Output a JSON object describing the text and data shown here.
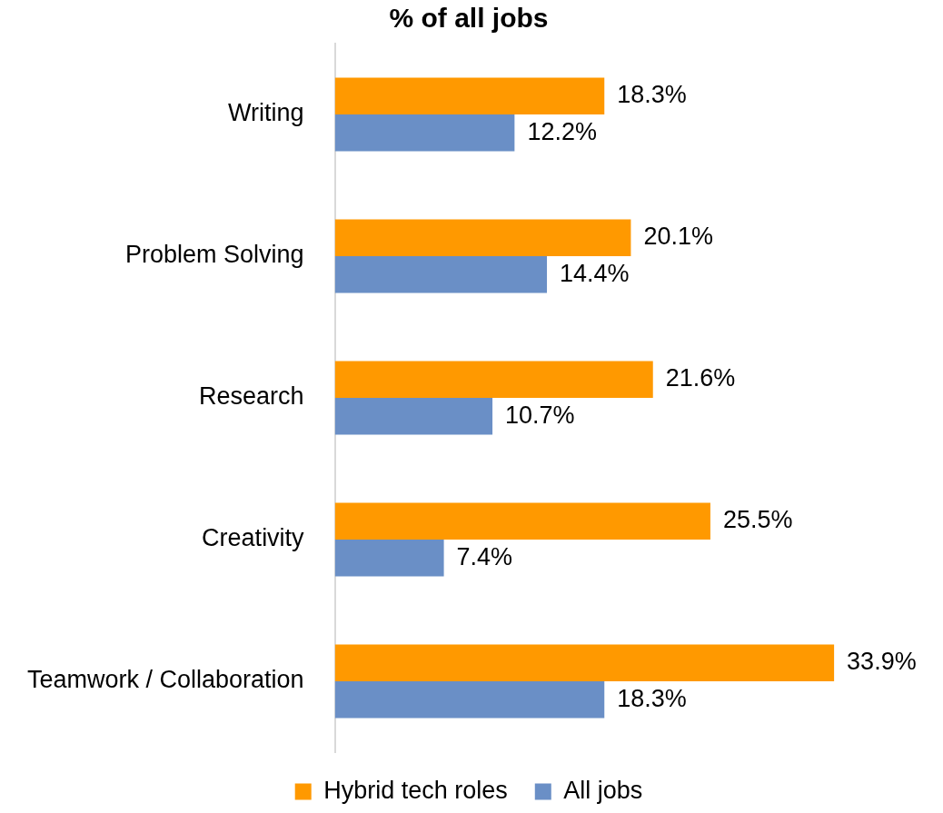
{
  "chart_data": {
    "type": "bar",
    "orientation": "horizontal",
    "title": "% of all jobs",
    "categories": [
      "Writing",
      "Problem Solving",
      "Research",
      "Creativity",
      "Teamwork / Collaboration"
    ],
    "series": [
      {
        "name": "Hybrid tech roles",
        "color": "#ff9900",
        "values": [
          18.3,
          20.1,
          21.6,
          25.5,
          33.9
        ],
        "value_labels": [
          "18.3%",
          "20.1%",
          "21.6%",
          "25.5%",
          "33.9%"
        ]
      },
      {
        "name": "All jobs",
        "color": "#6a8fc6",
        "values": [
          12.2,
          14.4,
          10.7,
          7.4,
          18.3
        ],
        "value_labels": [
          "12.2%",
          "14.4%",
          "10.7%",
          "7.4%",
          "18.3%"
        ]
      }
    ],
    "legend": "bottom"
  }
}
